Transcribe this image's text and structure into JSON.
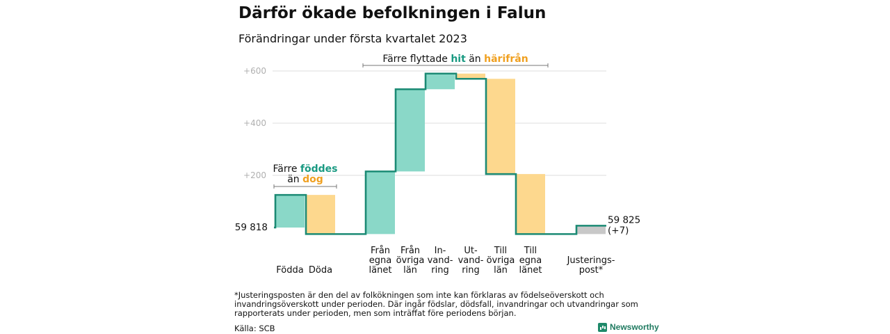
{
  "title": "Därför ökade befolkningen i Falun",
  "subtitle": "Förändringar under första kvartalet 2023",
  "footnote": "*Justeringsposten är den del av folkökningen som inte kan förklaras av födelseöverskott och invandringsöverskott under perioden. Där ingår födslar, dödsfall, invandringar och utvandringar som rapporterats under perioden, men som inträffat före periodens början.",
  "source": "Källa: SCB",
  "brand": "Newsworthy",
  "colors": {
    "teal": "#8ad8c8",
    "orange": "#fdd88e",
    "gray": "#c8c8c8",
    "line": "#1b8a74",
    "teal_text": "#1a9a82",
    "orange_text": "#f0a020"
  },
  "chart_data": {
    "type": "waterfall",
    "start_label": "59 818",
    "end_label": "59 825",
    "end_change_label": "(+7)",
    "ylim": [
      -30,
      640
    ],
    "y_ticks": [
      {
        "value": 200,
        "label": "+200"
      },
      {
        "value": 400,
        "label": "+400"
      },
      {
        "value": 600,
        "label": "+600"
      }
    ],
    "steps": [
      {
        "name": "Födda",
        "lines": [
          "Födda"
        ],
        "value": 125,
        "color": "teal"
      },
      {
        "name": "Döda",
        "lines": [
          "Döda"
        ],
        "value": -150,
        "color": "orange"
      },
      {
        "name": "Från egna länet",
        "lines": [
          "Från",
          "egna",
          "länet"
        ],
        "value": 240,
        "color": "teal"
      },
      {
        "name": "Från övriga län",
        "lines": [
          "Från",
          "övriga",
          "län"
        ],
        "value": 315,
        "color": "teal"
      },
      {
        "name": "Invandring",
        "lines": [
          "In-",
          "vand-",
          "ring"
        ],
        "value": 60,
        "color": "teal"
      },
      {
        "name": "Utvandring",
        "lines": [
          "Ut-",
          "vand-",
          "ring"
        ],
        "value": -20,
        "color": "orange"
      },
      {
        "name": "Till övriga län",
        "lines": [
          "Till",
          "övriga",
          "län"
        ],
        "value": -365,
        "color": "orange"
      },
      {
        "name": "Till egna länet",
        "lines": [
          "Till",
          "egna",
          "länet"
        ],
        "value": -230,
        "color": "orange"
      },
      {
        "name": "Justeringspost*",
        "lines": [
          "Justerings-",
          "post*"
        ],
        "value": 32,
        "color": "gray"
      }
    ],
    "annotations": [
      {
        "text_parts": [
          {
            "text": "Färre flyttade ",
            "style": "plain"
          },
          {
            "text": "hit",
            "style": "teal"
          },
          {
            "text": " än ",
            "style": "plain"
          },
          {
            "text": "härifrån",
            "style": "orange"
          }
        ],
        "from_step": 2,
        "to_step": 7
      },
      {
        "line1_parts": [
          {
            "text": "Färre ",
            "style": "plain"
          },
          {
            "text": "föddes",
            "style": "teal"
          }
        ],
        "line2_parts": [
          {
            "text": "än ",
            "style": "plain"
          },
          {
            "text": "dog",
            "style": "orange"
          }
        ],
        "from_step": 0,
        "to_step": 1
      }
    ]
  }
}
